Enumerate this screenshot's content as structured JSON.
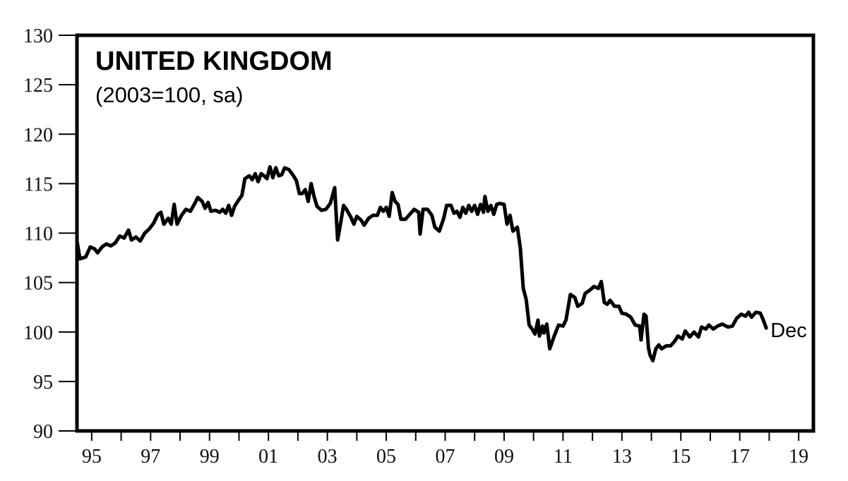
{
  "chart_data": {
    "type": "line",
    "title": "UNITED KINGDOM",
    "subtitle": "(2003=100, sa)",
    "ylim": [
      90,
      130
    ],
    "yticks": [
      "90",
      "95",
      "100",
      "105",
      "110",
      "115",
      "120",
      "125",
      "130"
    ],
    "xlim": [
      1994.5,
      2019.5
    ],
    "xticks": [
      {
        "label": "95",
        "year": 1995
      },
      {
        "label": "97",
        "year": 1997
      },
      {
        "label": "99",
        "year": 1999
      },
      {
        "label": "01",
        "year": 2001
      },
      {
        "label": "03",
        "year": 2003
      },
      {
        "label": "05",
        "year": 2005
      },
      {
        "label": "07",
        "year": 2007
      },
      {
        "label": "09",
        "year": 2009
      },
      {
        "label": "11",
        "year": 2011
      },
      {
        "label": "13",
        "year": 2013
      },
      {
        "label": "15",
        "year": 2015
      },
      {
        "label": "17",
        "year": 2017
      },
      {
        "label": "19",
        "year": 2019
      }
    ],
    "end_label": "Dec",
    "grid": false,
    "series": [
      {
        "color": "#000000",
        "points": [
          [
            1994.5,
            109.2
          ],
          [
            1994.6,
            107.4
          ],
          [
            1994.8,
            107.6
          ],
          [
            1994.95,
            108.6
          ],
          [
            1995.1,
            108.4
          ],
          [
            1995.2,
            108.0
          ],
          [
            1995.35,
            108.6
          ],
          [
            1995.5,
            108.9
          ],
          [
            1995.65,
            108.7
          ],
          [
            1995.8,
            109.0
          ],
          [
            1995.95,
            109.7
          ],
          [
            1996.1,
            109.5
          ],
          [
            1996.25,
            110.3
          ],
          [
            1996.35,
            109.3
          ],
          [
            1996.5,
            109.6
          ],
          [
            1996.65,
            109.2
          ],
          [
            1996.8,
            110.0
          ],
          [
            1996.95,
            110.4
          ],
          [
            1997.1,
            111.0
          ],
          [
            1997.25,
            111.9
          ],
          [
            1997.35,
            112.1
          ],
          [
            1997.45,
            110.9
          ],
          [
            1997.6,
            111.5
          ],
          [
            1997.7,
            110.9
          ],
          [
            1997.8,
            112.9
          ],
          [
            1997.9,
            110.9
          ],
          [
            1998.05,
            111.8
          ],
          [
            1998.2,
            112.4
          ],
          [
            1998.35,
            112.2
          ],
          [
            1998.5,
            113.0
          ],
          [
            1998.6,
            113.6
          ],
          [
            1998.75,
            113.2
          ],
          [
            1998.85,
            112.5
          ],
          [
            1998.95,
            113.1
          ],
          [
            1999.05,
            112.2
          ],
          [
            1999.2,
            112.3
          ],
          [
            1999.35,
            112.1
          ],
          [
            1999.45,
            112.4
          ],
          [
            1999.55,
            112.0
          ],
          [
            1999.65,
            112.8
          ],
          [
            1999.75,
            111.8
          ],
          [
            1999.85,
            112.7
          ],
          [
            2000.0,
            113.4
          ],
          [
            2000.1,
            113.8
          ],
          [
            2000.2,
            115.5
          ],
          [
            2000.35,
            115.8
          ],
          [
            2000.45,
            115.4
          ],
          [
            2000.55,
            116.0
          ],
          [
            2000.65,
            115.2
          ],
          [
            2000.75,
            116.0
          ],
          [
            2000.85,
            115.8
          ],
          [
            2000.95,
            115.5
          ],
          [
            2001.05,
            116.7
          ],
          [
            2001.15,
            115.6
          ],
          [
            2001.25,
            116.6
          ],
          [
            2001.35,
            115.8
          ],
          [
            2001.45,
            115.9
          ],
          [
            2001.55,
            116.6
          ],
          [
            2001.7,
            116.4
          ],
          [
            2001.85,
            115.8
          ],
          [
            2001.95,
            115.3
          ],
          [
            2002.05,
            114.0
          ],
          [
            2002.15,
            114.0
          ],
          [
            2002.25,
            114.4
          ],
          [
            2002.35,
            113.2
          ],
          [
            2002.45,
            115.0
          ],
          [
            2002.55,
            113.7
          ],
          [
            2002.65,
            112.7
          ],
          [
            2002.8,
            112.3
          ],
          [
            2002.95,
            112.4
          ],
          [
            2003.1,
            113.0
          ],
          [
            2003.25,
            114.6
          ],
          [
            2003.35,
            109.3
          ],
          [
            2003.45,
            111.0
          ],
          [
            2003.55,
            112.8
          ],
          [
            2003.65,
            112.4
          ],
          [
            2003.8,
            111.6
          ],
          [
            2003.9,
            110.9
          ],
          [
            2004.0,
            111.7
          ],
          [
            2004.15,
            111.3
          ],
          [
            2004.25,
            110.8
          ],
          [
            2004.4,
            111.5
          ],
          [
            2004.55,
            111.8
          ],
          [
            2004.7,
            111.8
          ],
          [
            2004.8,
            112.6
          ],
          [
            2004.9,
            112.2
          ],
          [
            2005.0,
            112.6
          ],
          [
            2005.1,
            111.7
          ],
          [
            2005.2,
            114.1
          ],
          [
            2005.3,
            113.2
          ],
          [
            2005.4,
            112.9
          ],
          [
            2005.5,
            111.4
          ],
          [
            2005.65,
            111.4
          ],
          [
            2005.8,
            111.9
          ],
          [
            2005.95,
            112.4
          ],
          [
            2006.1,
            112.1
          ],
          [
            2006.15,
            109.9
          ],
          [
            2006.25,
            112.4
          ],
          [
            2006.4,
            112.4
          ],
          [
            2006.55,
            111.8
          ],
          [
            2006.65,
            110.6
          ],
          [
            2006.8,
            110.2
          ],
          [
            2006.95,
            111.5
          ],
          [
            2007.05,
            112.8
          ],
          [
            2007.2,
            112.8
          ],
          [
            2007.3,
            112.0
          ],
          [
            2007.4,
            112.2
          ],
          [
            2007.5,
            111.6
          ],
          [
            2007.6,
            112.6
          ],
          [
            2007.7,
            112.0
          ],
          [
            2007.8,
            112.8
          ],
          [
            2007.9,
            112.2
          ],
          [
            2008.0,
            112.8
          ],
          [
            2008.1,
            111.9
          ],
          [
            2008.2,
            112.9
          ],
          [
            2008.3,
            112.1
          ],
          [
            2008.35,
            113.7
          ],
          [
            2008.45,
            112.2
          ],
          [
            2008.55,
            112.8
          ],
          [
            2008.65,
            111.9
          ],
          [
            2008.75,
            112.9
          ],
          [
            2008.85,
            113.0
          ],
          [
            2009.0,
            112.9
          ],
          [
            2009.1,
            110.9
          ],
          [
            2009.2,
            111.8
          ],
          [
            2009.3,
            110.2
          ],
          [
            2009.45,
            110.6
          ],
          [
            2009.55,
            108.5
          ],
          [
            2009.65,
            104.4
          ],
          [
            2009.75,
            103.3
          ],
          [
            2009.85,
            100.7
          ],
          [
            2009.95,
            100.3
          ],
          [
            2010.05,
            99.8
          ],
          [
            2010.15,
            101.2
          ],
          [
            2010.2,
            99.6
          ],
          [
            2010.3,
            100.6
          ],
          [
            2010.35,
            99.9
          ],
          [
            2010.45,
            100.8
          ],
          [
            2010.55,
            98.3
          ],
          [
            2010.7,
            99.6
          ],
          [
            2010.85,
            100.7
          ],
          [
            2011.0,
            100.6
          ],
          [
            2011.1,
            101.2
          ],
          [
            2011.25,
            103.8
          ],
          [
            2011.4,
            103.5
          ],
          [
            2011.5,
            102.6
          ],
          [
            2011.65,
            102.9
          ],
          [
            2011.75,
            103.9
          ],
          [
            2011.9,
            104.2
          ],
          [
            2012.05,
            104.6
          ],
          [
            2012.2,
            104.4
          ],
          [
            2012.3,
            105.1
          ],
          [
            2012.4,
            103.0
          ],
          [
            2012.5,
            102.8
          ],
          [
            2012.6,
            103.2
          ],
          [
            2012.75,
            102.6
          ],
          [
            2012.9,
            102.6
          ],
          [
            2013.0,
            101.9
          ],
          [
            2013.15,
            101.8
          ],
          [
            2013.3,
            101.5
          ],
          [
            2013.45,
            100.7
          ],
          [
            2013.6,
            100.6
          ],
          [
            2013.65,
            99.2
          ],
          [
            2013.75,
            101.8
          ],
          [
            2013.82,
            101.6
          ],
          [
            2013.9,
            98.4
          ],
          [
            2013.95,
            97.7
          ],
          [
            2014.05,
            97.1
          ],
          [
            2014.15,
            98.3
          ],
          [
            2014.25,
            98.7
          ],
          [
            2014.35,
            98.3
          ],
          [
            2014.5,
            98.6
          ],
          [
            2014.65,
            98.6
          ],
          [
            2014.8,
            99.1
          ],
          [
            2014.9,
            99.6
          ],
          [
            2015.05,
            99.3
          ],
          [
            2015.15,
            100.1
          ],
          [
            2015.3,
            99.5
          ],
          [
            2015.45,
            100.0
          ],
          [
            2015.6,
            99.5
          ],
          [
            2015.7,
            100.5
          ],
          [
            2015.85,
            100.3
          ],
          [
            2015.95,
            100.7
          ],
          [
            2016.1,
            100.3
          ],
          [
            2016.25,
            100.6
          ],
          [
            2016.4,
            100.8
          ],
          [
            2016.6,
            100.5
          ],
          [
            2016.75,
            100.6
          ],
          [
            2016.9,
            101.4
          ],
          [
            2017.05,
            101.8
          ],
          [
            2017.2,
            101.6
          ],
          [
            2017.3,
            102.0
          ],
          [
            2017.4,
            101.5
          ],
          [
            2017.55,
            102.0
          ],
          [
            2017.7,
            101.9
          ],
          [
            2017.8,
            101.2
          ],
          [
            2017.9,
            100.4
          ]
        ]
      }
    ]
  }
}
